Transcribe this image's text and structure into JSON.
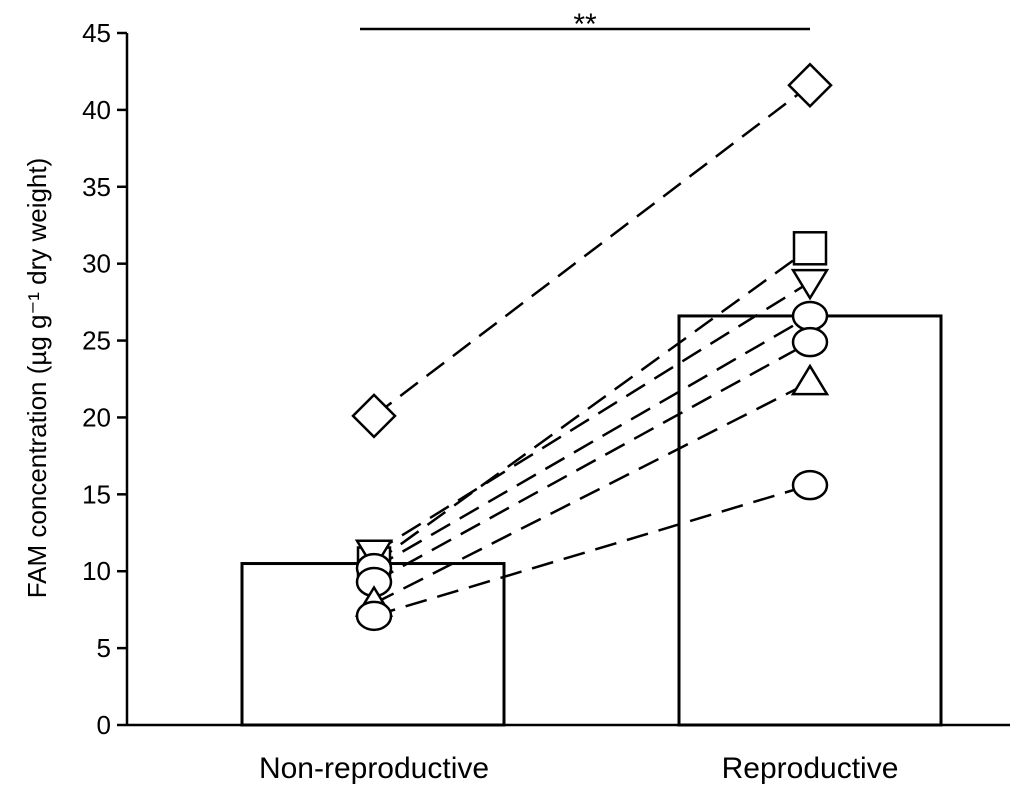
{
  "chart_data": {
    "type": "bar",
    "ylabel": "FAM concentration (µg g⁻¹ dry weight)",
    "ylim": [
      0,
      45
    ],
    "yticks": [
      0,
      5,
      10,
      15,
      20,
      25,
      30,
      35,
      40,
      45
    ],
    "categories": [
      "Non-reproductive",
      "Reproductive"
    ],
    "bar_values": [
      10.5,
      26.6
    ],
    "paired_series": [
      {
        "marker": "diamond",
        "values": [
          20.1,
          41.6
        ]
      },
      {
        "marker": "square",
        "values": [
          10.5,
          31.0
        ]
      },
      {
        "marker": "triangle-down",
        "values": [
          11.2,
          28.8
        ]
      },
      {
        "marker": "circle",
        "values": [
          10.2,
          26.6
        ]
      },
      {
        "marker": "circle",
        "values": [
          9.3,
          24.9
        ]
      },
      {
        "marker": "triangle-up",
        "values": [
          7.9,
          22.3
        ]
      },
      {
        "marker": "circle",
        "values": [
          7.1,
          15.6
        ]
      }
    ],
    "significance": {
      "label": "**",
      "between": [
        "Non-reproductive",
        "Reproductive"
      ]
    }
  }
}
